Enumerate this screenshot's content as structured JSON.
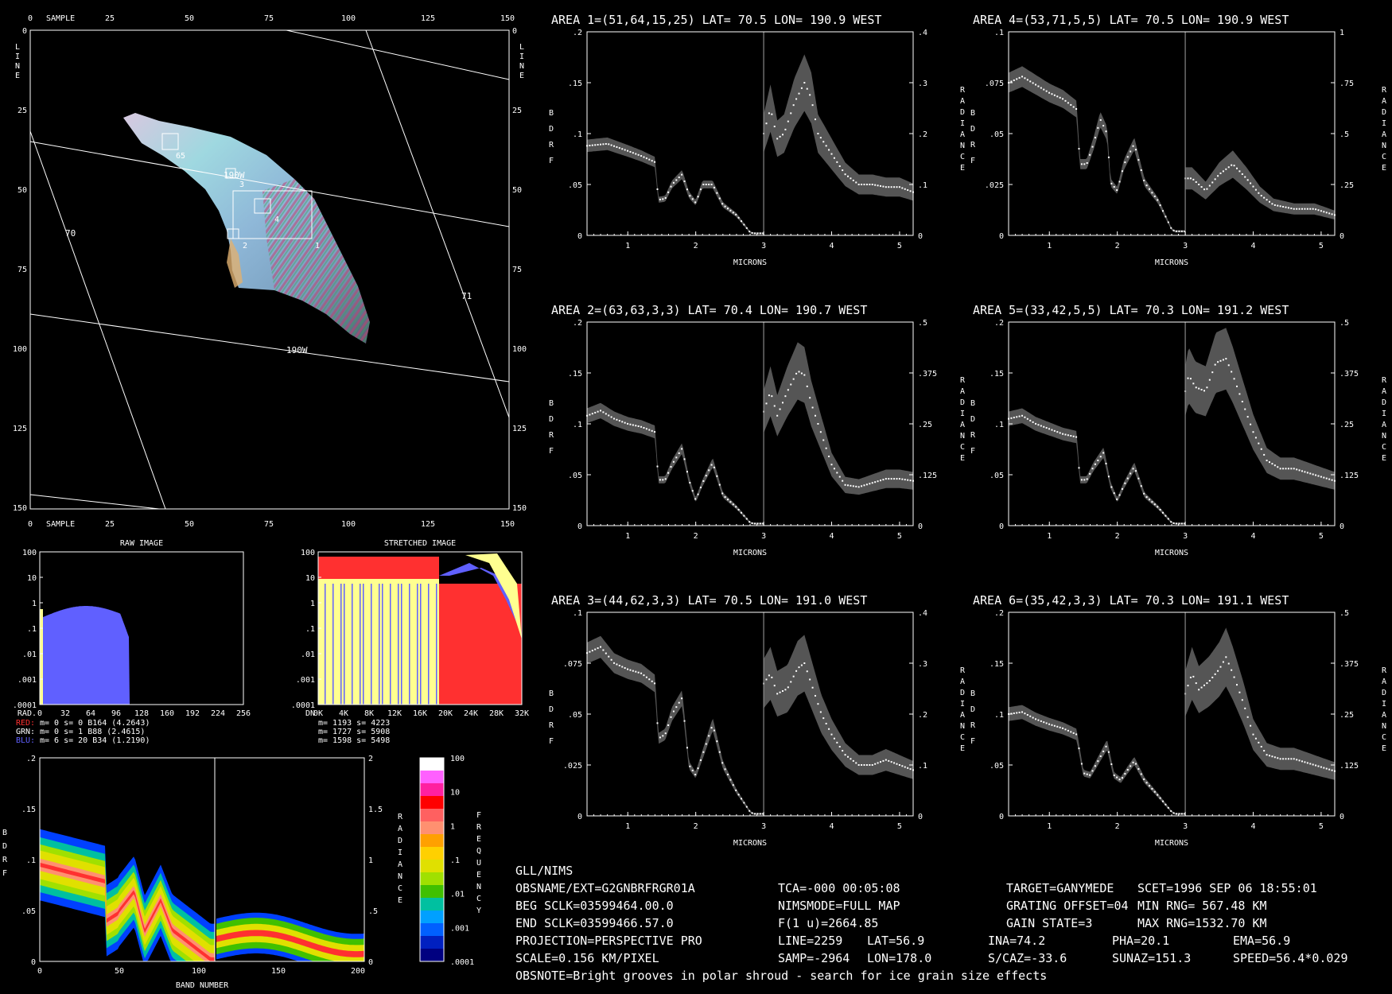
{
  "image_panel": {
    "axis_labels": {
      "sample": "SAMPLE",
      "line": "LINE"
    },
    "x_ticks": [
      "0",
      "25",
      "50",
      "75",
      "100",
      "125",
      "150"
    ],
    "y_ticks": [
      "0",
      "25",
      "50",
      "75",
      "100",
      "125",
      "150"
    ],
    "grid_labels": [
      "190W",
      "190W",
      "70",
      "71"
    ],
    "box_labels": [
      "65",
      "3",
      "4",
      "1",
      "2"
    ]
  },
  "histograms": {
    "raw": {
      "title": "RAW IMAGE",
      "y_ticks": [
        "100",
        "10",
        "1",
        ".1",
        ".01",
        ".001",
        ".0001"
      ],
      "x_ticks": [
        "0",
        "32",
        "64",
        "96",
        "128",
        "160",
        "192",
        "224",
        "256"
      ],
      "x_label": "RAD.",
      "stats": [
        {
          "name": "RED:",
          "text": "m=    0 s=    0 B164 (4.2643)",
          "color": "#ff3030"
        },
        {
          "name": "GRN:",
          "text": "m=    0 s=    1 B88  (2.4615)",
          "color": "#ffffff"
        },
        {
          "name": "BLU:",
          "text": "m=    6 s=   20 B34  (1.2190)",
          "color": "#6060ff"
        }
      ]
    },
    "stretched": {
      "title": "STRETCHED IMAGE",
      "y_ticks": [
        "100",
        "10",
        "1",
        ".1",
        ".01",
        ".001",
        ".0001"
      ],
      "x_ticks": [
        "0K",
        "4K",
        "8K",
        "12K",
        "16K",
        "20K",
        "24K",
        "28K",
        "32K"
      ],
      "x_label": "DN",
      "stats": [
        "m= 1193 s= 4223",
        "m= 1727 s= 5908",
        "m= 1598 s= 5498"
      ]
    }
  },
  "density_plot": {
    "x_label": "BAND NUMBER",
    "x_ticks": [
      "0",
      "50",
      "100",
      "150",
      "200"
    ],
    "left_ticks": [
      ".2",
      ".15",
      ".1",
      ".05",
      "0"
    ],
    "right_ticks": [
      "2",
      "1.5",
      "1",
      ".5",
      "0"
    ],
    "left_label": "BDRF",
    "right_label": "RADIANCE",
    "colorbar_label": "FREQUENCY",
    "colorbar_ticks": [
      "100",
      "10",
      "1",
      ".1",
      ".01",
      ".001",
      ".0001"
    ],
    "colorbar_colors": [
      "#ffffff",
      "#ff60ff",
      "#ff20a0",
      "#ff0000",
      "#ff6060",
      "#ff9070",
      "#ffa000",
      "#ffd000",
      "#e0e000",
      "#a0e000",
      "#40c000",
      "#00c0a0",
      "#00a0ff",
      "#0060ff",
      "#0020c0",
      "#000080"
    ]
  },
  "spectra_common": {
    "x_label": "MICRONS",
    "x_ticks": [
      "1",
      "2",
      "3",
      "4",
      "5"
    ],
    "left_label": "BDRF",
    "right_label": "RADIANCE"
  },
  "spectra": [
    {
      "title": "AREA 1=(51,64,15,25) LAT=  70.5 LON= 190.9 WEST",
      "left_ticks": [
        ".2",
        ".15",
        ".1",
        ".05",
        "0"
      ],
      "right_ticks": [
        ".4",
        ".3",
        ".2",
        ".1",
        "0"
      ],
      "left_max": 0.2,
      "right_max": 0.4
    },
    {
      "title": "AREA 4=(53,71,5,5) LAT=  70.5 LON= 190.9 WEST",
      "left_ticks": [
        ".1",
        ".075",
        ".05",
        ".025",
        "0"
      ],
      "right_ticks": [
        "1",
        ".75",
        ".5",
        ".25",
        "0"
      ],
      "left_max": 0.1,
      "right_max": 1.0
    },
    {
      "title": "AREA 2=(63,63,3,3) LAT=  70.4 LON= 190.7 WEST",
      "left_ticks": [
        ".2",
        ".15",
        ".1",
        ".05",
        "0"
      ],
      "right_ticks": [
        ".5",
        ".375",
        ".25",
        ".125",
        "0"
      ],
      "left_max": 0.2,
      "right_max": 0.5
    },
    {
      "title": "AREA 5=(33,42,5,5) LAT=  70.3 LON= 191.2 WEST",
      "left_ticks": [
        ".2",
        ".15",
        ".1",
        ".05",
        "0"
      ],
      "right_ticks": [
        ".5",
        ".375",
        ".25",
        ".125",
        "0"
      ],
      "left_max": 0.2,
      "right_max": 0.5
    },
    {
      "title": "AREA 3=(44,62,3,3) LAT=  70.5 LON= 191.0 WEST",
      "left_ticks": [
        ".1",
        ".075",
        ".05",
        ".025",
        "0"
      ],
      "right_ticks": [
        ".4",
        ".3",
        ".2",
        ".1",
        "0"
      ],
      "left_max": 0.1,
      "right_max": 0.4
    },
    {
      "title": "AREA 6=(35,42,3,3) LAT=  70.3 LON= 191.1 WEST",
      "left_ticks": [
        ".2",
        ".15",
        ".1",
        ".05",
        "0"
      ],
      "right_ticks": [
        ".5",
        ".375",
        ".25",
        ".125",
        "0"
      ],
      "left_max": 0.2,
      "right_max": 0.5
    }
  ],
  "chart_data": [
    {
      "type": "line",
      "title": "AREA 1=(51,64,15,25) LAT=  70.5 LON= 190.9 WEST",
      "xlabel": "MICRONS",
      "ylabel": "BDRF",
      "ylabel_right": "RADIANCE",
      "xlim": [
        0.4,
        5.2
      ],
      "ylim": [
        0,
        0.2
      ],
      "ylim_right": [
        0,
        0.4
      ],
      "series": [
        {
          "name": "BDRF",
          "x": [
            0.4,
            0.7,
            1.0,
            1.2,
            1.4,
            1.45,
            1.55,
            1.65,
            1.8,
            1.9,
            2.0,
            2.1,
            2.25,
            2.4,
            2.6,
            2.8,
            2.85,
            2.99
          ],
          "y": [
            0.088,
            0.09,
            0.083,
            0.078,
            0.072,
            0.035,
            0.036,
            0.05,
            0.06,
            0.04,
            0.032,
            0.05,
            0.05,
            0.03,
            0.02,
            0.003,
            0.002,
            0.002
          ]
        },
        {
          "name": "RADIANCE",
          "x": [
            3.0,
            3.1,
            3.2,
            3.3,
            3.45,
            3.6,
            3.7,
            3.8,
            4.0,
            4.2,
            4.4,
            4.6,
            4.8,
            5.0,
            5.2
          ],
          "y": [
            0.2,
            0.25,
            0.19,
            0.2,
            0.26,
            0.3,
            0.27,
            0.2,
            0.16,
            0.12,
            0.1,
            0.1,
            0.095,
            0.095,
            0.085
          ]
        }
      ]
    },
    {
      "type": "line",
      "title": "AREA 4=(53,71,5,5) LAT=  70.5 LON= 190.9 WEST",
      "xlabel": "MICRONS",
      "ylabel": "BDRF",
      "ylabel_right": "RADIANCE",
      "xlim": [
        0.4,
        5.2
      ],
      "ylim": [
        0,
        0.1
      ],
      "ylim_right": [
        0,
        1.0
      ],
      "series": [
        {
          "name": "BDRF",
          "x": [
            0.4,
            0.6,
            0.8,
            1.0,
            1.2,
            1.4,
            1.45,
            1.55,
            1.65,
            1.75,
            1.85,
            1.9,
            2.0,
            2.1,
            2.25,
            2.4,
            2.6,
            2.8,
            2.85,
            2.99
          ],
          "y": [
            0.075,
            0.078,
            0.074,
            0.07,
            0.067,
            0.062,
            0.035,
            0.035,
            0.045,
            0.057,
            0.05,
            0.026,
            0.022,
            0.035,
            0.045,
            0.026,
            0.017,
            0.003,
            0.002,
            0.002
          ]
        },
        {
          "name": "RADIANCE",
          "x": [
            3.0,
            3.1,
            3.3,
            3.5,
            3.7,
            3.9,
            4.1,
            4.3,
            4.6,
            4.9,
            5.2
          ],
          "y": [
            0.28,
            0.28,
            0.22,
            0.3,
            0.35,
            0.28,
            0.2,
            0.15,
            0.13,
            0.13,
            0.1
          ]
        }
      ]
    },
    {
      "type": "line",
      "title": "AREA 2=(63,63,3,3) LAT=  70.4 LON= 190.7 WEST",
      "xlabel": "MICRONS",
      "ylabel": "BDRF",
      "ylabel_right": "RADIANCE",
      "xlim": [
        0.4,
        5.2
      ],
      "ylim": [
        0,
        0.2
      ],
      "ylim_right": [
        0,
        0.5
      ],
      "series": [
        {
          "name": "BDRF",
          "x": [
            0.4,
            0.6,
            0.8,
            1.0,
            1.2,
            1.4,
            1.45,
            1.55,
            1.65,
            1.8,
            1.9,
            2.0,
            2.1,
            2.25,
            2.4,
            2.6,
            2.8,
            2.85,
            2.99
          ],
          "y": [
            0.108,
            0.113,
            0.105,
            0.1,
            0.097,
            0.092,
            0.045,
            0.045,
            0.06,
            0.076,
            0.045,
            0.025,
            0.042,
            0.062,
            0.03,
            0.018,
            0.003,
            0.002,
            0.002
          ]
        },
        {
          "name": "RADIANCE",
          "x": [
            3.0,
            3.1,
            3.2,
            3.35,
            3.5,
            3.6,
            3.7,
            3.8,
            4.0,
            4.2,
            4.4,
            4.6,
            4.8,
            5.0,
            5.2
          ],
          "y": [
            0.28,
            0.33,
            0.27,
            0.33,
            0.38,
            0.37,
            0.3,
            0.25,
            0.15,
            0.1,
            0.095,
            0.105,
            0.115,
            0.115,
            0.11
          ]
        }
      ]
    },
    {
      "type": "line",
      "title": "AREA 5=(33,42,5,5) LAT=  70.3 LON= 191.2 WEST",
      "xlabel": "MICRONS",
      "ylabel": "BDRF",
      "ylabel_right": "RADIANCE",
      "xlim": [
        0.4,
        5.2
      ],
      "ylim": [
        0,
        0.2
      ],
      "ylim_right": [
        0,
        0.5
      ],
      "series": [
        {
          "name": "BDRF",
          "x": [
            0.4,
            0.6,
            0.8,
            1.0,
            1.2,
            1.4,
            1.45,
            1.55,
            1.65,
            1.8,
            1.9,
            2.0,
            2.1,
            2.25,
            2.4,
            2.6,
            2.8,
            2.85,
            2.99
          ],
          "y": [
            0.105,
            0.108,
            0.1,
            0.095,
            0.09,
            0.087,
            0.045,
            0.045,
            0.058,
            0.072,
            0.04,
            0.025,
            0.04,
            0.058,
            0.03,
            0.018,
            0.003,
            0.002,
            0.002
          ]
        },
        {
          "name": "RADIANCE",
          "x": [
            3.0,
            3.05,
            3.15,
            3.3,
            3.45,
            3.6,
            3.7,
            3.85,
            4.0,
            4.2,
            4.4,
            4.6,
            4.8,
            5.0,
            5.2
          ],
          "y": [
            0.33,
            0.37,
            0.34,
            0.33,
            0.4,
            0.41,
            0.37,
            0.3,
            0.23,
            0.16,
            0.14,
            0.14,
            0.13,
            0.12,
            0.11
          ]
        }
      ]
    },
    {
      "type": "line",
      "title": "AREA 3=(44,62,3,3) LAT=  70.5 LON= 191.0 WEST",
      "xlabel": "MICRONS",
      "ylabel": "BDRF",
      "ylabel_right": "RADIANCE",
      "xlim": [
        0.4,
        5.2
      ],
      "ylim": [
        0,
        0.1
      ],
      "ylim_right": [
        0,
        0.4
      ],
      "series": [
        {
          "name": "BDRF",
          "x": [
            0.4,
            0.6,
            0.8,
            1.0,
            1.2,
            1.4,
            1.45,
            1.55,
            1.65,
            1.8,
            1.9,
            2.0,
            2.1,
            2.25,
            2.4,
            2.6,
            2.8,
            2.85,
            2.99
          ],
          "y": [
            0.08,
            0.083,
            0.075,
            0.072,
            0.07,
            0.065,
            0.038,
            0.04,
            0.05,
            0.058,
            0.025,
            0.02,
            0.03,
            0.045,
            0.025,
            0.012,
            0.002,
            0.001,
            0.001
          ]
        },
        {
          "name": "RADIANCE",
          "x": [
            3.0,
            3.1,
            3.2,
            3.35,
            3.5,
            3.6,
            3.7,
            3.85,
            4.0,
            4.2,
            4.4,
            4.6,
            4.8,
            5.0,
            5.2
          ],
          "y": [
            0.26,
            0.28,
            0.24,
            0.25,
            0.29,
            0.3,
            0.26,
            0.2,
            0.16,
            0.12,
            0.1,
            0.1,
            0.11,
            0.1,
            0.09
          ]
        }
      ]
    },
    {
      "type": "line",
      "title": "AREA 6=(35,42,3,3) LAT=  70.3 LON= 191.1 WEST",
      "xlabel": "MICRONS",
      "ylabel": "BDRF",
      "ylabel_right": "RADIANCE",
      "xlim": [
        0.4,
        5.2
      ],
      "ylim": [
        0,
        0.2
      ],
      "ylim_right": [
        0,
        0.5
      ],
      "series": [
        {
          "name": "BDRF",
          "x": [
            0.4,
            0.6,
            0.8,
            1.0,
            1.2,
            1.4,
            1.5,
            1.6,
            1.7,
            1.85,
            1.95,
            2.05,
            2.15,
            2.25,
            2.4,
            2.6,
            2.8,
            2.85,
            2.99
          ],
          "y": [
            0.1,
            0.102,
            0.095,
            0.09,
            0.086,
            0.08,
            0.042,
            0.04,
            0.052,
            0.07,
            0.04,
            0.035,
            0.045,
            0.054,
            0.035,
            0.02,
            0.004,
            0.002,
            0.002
          ]
        },
        {
          "name": "RADIANCE",
          "x": [
            3.0,
            3.1,
            3.2,
            3.35,
            3.5,
            3.6,
            3.7,
            3.85,
            4.0,
            4.2,
            4.4,
            4.6,
            4.8,
            5.0,
            5.2
          ],
          "y": [
            0.3,
            0.35,
            0.31,
            0.33,
            0.36,
            0.39,
            0.35,
            0.28,
            0.2,
            0.15,
            0.14,
            0.14,
            0.13,
            0.12,
            0.11
          ]
        }
      ]
    }
  ],
  "info": {
    "rows": [
      [
        "GLL/NIMS"
      ],
      [
        "OBSNAME/EXT=G2GNBRFRGR01A",
        "TCA=-000 00:05:08",
        "TARGET=GANYMEDE",
        "SCET=1996 SEP 06 18:55:01"
      ],
      [
        "BEG SCLK=03599464.00.0",
        "NIMSMODE=FULL MAP",
        "GRATING OFFSET=04",
        "MIN RNG= 567.48 KM"
      ],
      [
        "END SCLK=03599466.57.0",
        "F(1 u)=2664.85",
        "GAIN STATE=3",
        "MAX RNG=1532.70 KM"
      ],
      [
        "PROJECTION=PERSPECTIVE PRO",
        "LINE=2259",
        "LAT=56.9",
        "INA=74.2",
        "PHA=20.1",
        "EMA=56.9"
      ],
      [
        "SCALE=0.156   KM/PIXEL",
        "SAMP=-2964",
        "LON=178.0",
        "S/CAZ=-33.6",
        "SUNAZ=151.3",
        "SPEED=56.4*0.029"
      ],
      [
        "OBSNOTE=Bright grooves in polar shroud - search for ice grain size effects"
      ]
    ]
  }
}
